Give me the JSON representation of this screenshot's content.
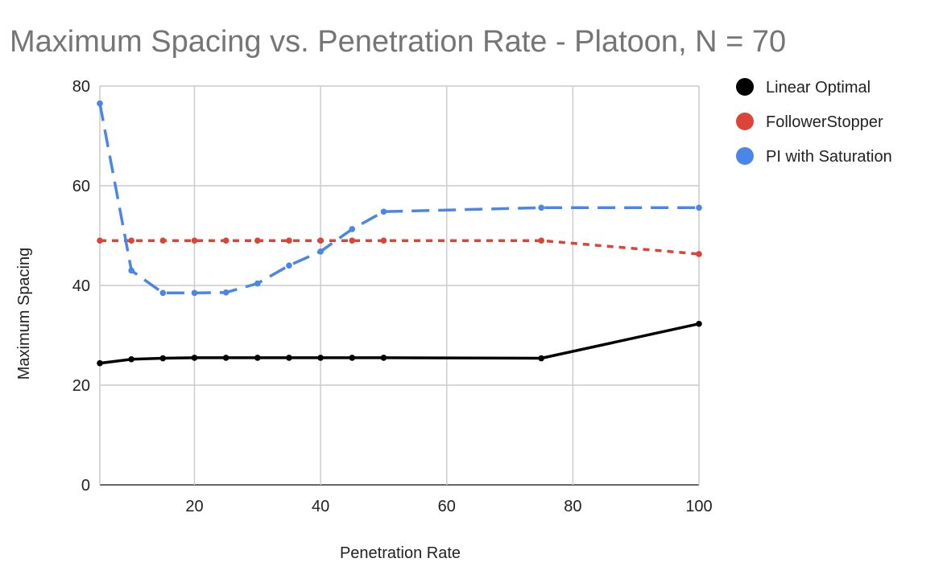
{
  "chart_data": {
    "type": "line",
    "title": "Maximum Spacing vs. Penetration Rate - Platoon, N = 70",
    "xlabel": "Penetration Rate",
    "ylabel": "Maximum Spacing",
    "xlim": [
      5,
      100
    ],
    "ylim": [
      0,
      80
    ],
    "xticks": [
      20,
      40,
      60,
      80,
      100
    ],
    "yticks": [
      0,
      20,
      40,
      60,
      80
    ],
    "grid": true,
    "legend_position": "right",
    "series": [
      {
        "name": "Linear Optimal",
        "color": "#000000",
        "dash": "solid",
        "points": [
          [
            5,
            24.4
          ],
          [
            10,
            25.2
          ],
          [
            15,
            25.4
          ],
          [
            20,
            25.5
          ],
          [
            25,
            25.5
          ],
          [
            30,
            25.5
          ],
          [
            35,
            25.5
          ],
          [
            40,
            25.5
          ],
          [
            45,
            25.5
          ],
          [
            50,
            25.5
          ],
          [
            75,
            25.4
          ],
          [
            100,
            32.3
          ]
        ]
      },
      {
        "name": "FollowerStopper",
        "color": "#db4437",
        "dash": "short",
        "points": [
          [
            5,
            49
          ],
          [
            10,
            49
          ],
          [
            15,
            49
          ],
          [
            20,
            49
          ],
          [
            25,
            49
          ],
          [
            30,
            49
          ],
          [
            35,
            49
          ],
          [
            40,
            49
          ],
          [
            45,
            49
          ],
          [
            50,
            49
          ],
          [
            75,
            49
          ],
          [
            100,
            46.3
          ]
        ]
      },
      {
        "name": "PI with Saturation",
        "color": "#4a86e8",
        "dash": "long",
        "points": [
          [
            5,
            76.5
          ],
          [
            10,
            43
          ],
          [
            15,
            38.5
          ],
          [
            20,
            38.5
          ],
          [
            25,
            38.6
          ],
          [
            30,
            40.4
          ],
          [
            35,
            44
          ],
          [
            40,
            46.8
          ],
          [
            45,
            51.3
          ],
          [
            50,
            54.8
          ],
          [
            75,
            55.6
          ],
          [
            100,
            55.6
          ]
        ]
      }
    ]
  }
}
